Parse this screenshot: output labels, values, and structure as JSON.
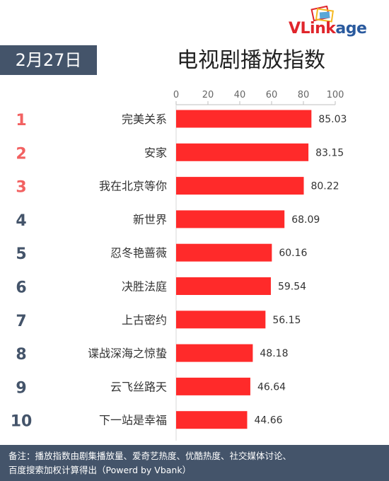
{
  "logo": {
    "text_red": "VLink",
    "text_blue": "age"
  },
  "date": "2月27日",
  "title": "电视剧播放指数",
  "colors": {
    "bar": "#ff2a2a",
    "rank_top": "#f26161",
    "rank_other": "#44546a",
    "badge_bg": "#44546a"
  },
  "chart_data": {
    "type": "bar",
    "orientation": "horizontal",
    "title": "电视剧播放指数",
    "xlim": [
      0,
      100
    ],
    "ticks": [
      0,
      20,
      40,
      60,
      80,
      100
    ],
    "grid": false,
    "ranks": [
      "1",
      "2",
      "3",
      "4",
      "5",
      "6",
      "7",
      "8",
      "9",
      "10"
    ],
    "categories": [
      "完美关系",
      "安家",
      "我在北京等你",
      "新世界",
      "忍冬艳蔷薇",
      "决胜法庭",
      "上古密约",
      "谍战深海之惊蛰",
      "云飞丝路天",
      "下一站是幸福"
    ],
    "values": [
      85.03,
      83.15,
      80.22,
      68.09,
      60.16,
      59.54,
      56.15,
      48.18,
      46.64,
      44.66
    ],
    "labels": [
      "85.03",
      "83.15",
      "80.22",
      "68.09",
      "60.16",
      "59.54",
      "56.15",
      "48.18",
      "46.64",
      "44.66"
    ]
  },
  "footer": {
    "line1": "备注：播放指数由剧集播放量、爱奇艺热度、优酷热度、社交媒体讨论、",
    "line2": "百度搜索加权计算得出（Powerd by Vbank）"
  }
}
